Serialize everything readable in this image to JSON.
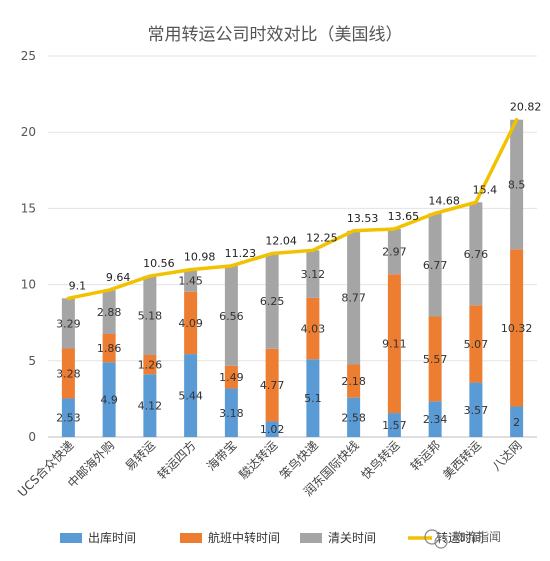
{
  "chart_data": {
    "type": "bar",
    "stacked": true,
    "title": "常用转运公司时效对比（美国线）",
    "categories": [
      "UCS合众快递",
      "中邮海外购",
      "易转运",
      "转运四方",
      "海带宝",
      "駿达转运",
      "笨鸟快递",
      "润东国际快线",
      "快鸟转运",
      "转运邦",
      "美西转运",
      "八达网"
    ],
    "series": [
      {
        "name": "出库时间",
        "color": "#5b9bd5",
        "values": [
          2.53,
          4.9,
          4.12,
          5.44,
          3.18,
          1.02,
          5.1,
          2.58,
          1.57,
          2.34,
          3.57,
          2
        ]
      },
      {
        "name": "航班中转时间",
        "color": "#ed7d31",
        "values": [
          3.28,
          1.86,
          1.26,
          4.09,
          1.49,
          4.77,
          4.03,
          2.18,
          9.11,
          5.57,
          5.07,
          10.32
        ]
      },
      {
        "name": "清关时间",
        "color": "#a5a5a5",
        "values": [
          3.29,
          2.88,
          5.18,
          1.45,
          6.56,
          6.25,
          3.12,
          8.77,
          2.97,
          6.77,
          6.76,
          8.5
        ]
      }
    ],
    "line": {
      "name": "转运时间",
      "color": "#f2c200",
      "values": [
        9.1,
        9.64,
        10.56,
        10.98,
        11.23,
        12.04,
        12.25,
        13.53,
        13.65,
        14.68,
        15.4,
        20.82
      ]
    },
    "ylim": [
      0,
      25
    ],
    "yticks": [
      0,
      5,
      10,
      15,
      20,
      25
    ],
    "legend_position": "bottom",
    "grid": true
  },
  "watermark": "物流指闻"
}
